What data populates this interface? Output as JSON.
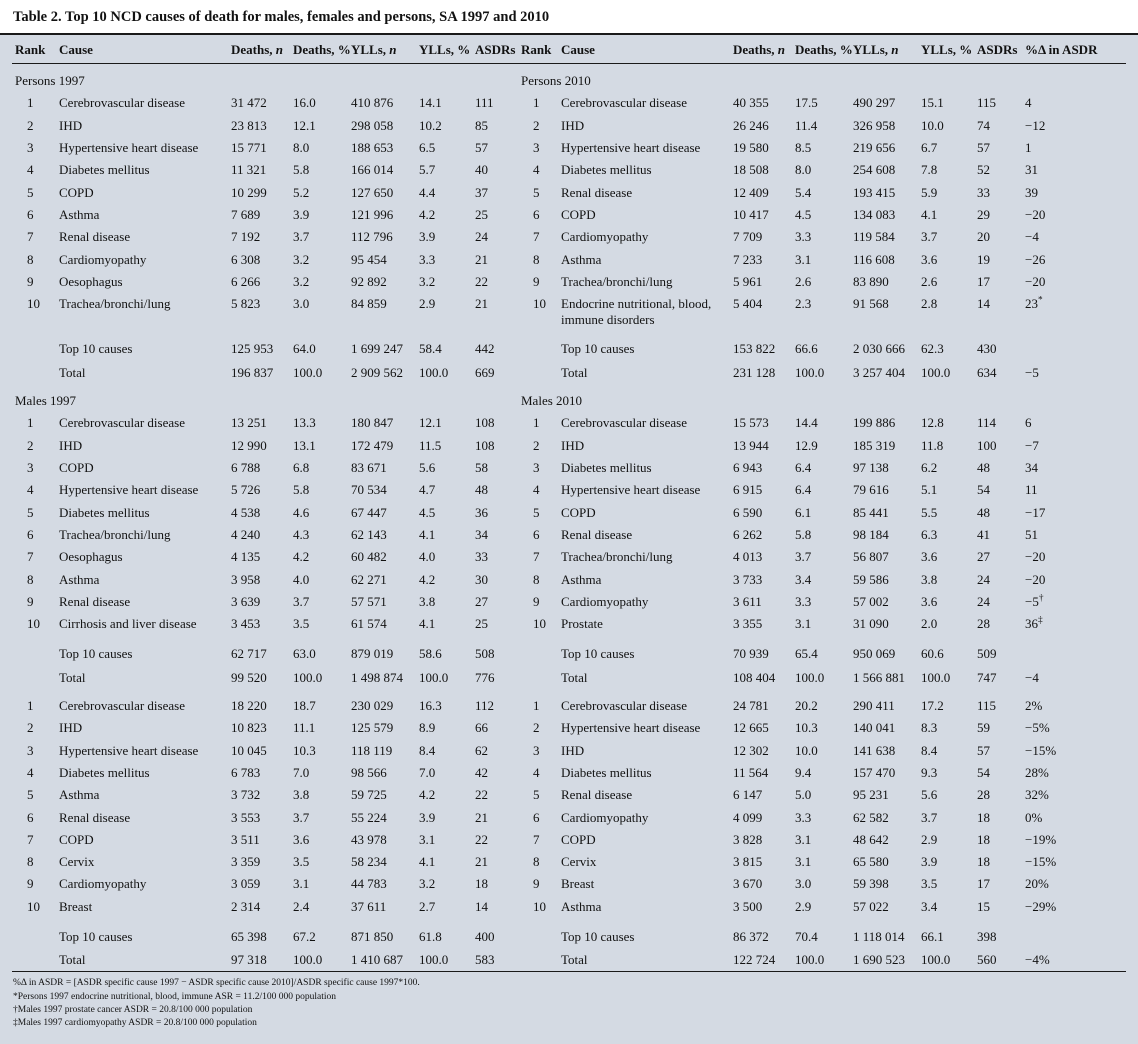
{
  "title": "Table 2. Top 10 NCD causes of death for males, females and persons, SA 1997 and 2010",
  "colors": {
    "table_background": "#d4dae3",
    "rule": "#1a1a1a"
  },
  "header": {
    "left": [
      "Rank",
      "Cause",
      "Deaths, n",
      "Deaths, %",
      "YLLs, n",
      "YLLs, %",
      "ASDRs"
    ],
    "right": [
      "Rank",
      "Cause",
      "Deaths, n",
      "Deaths, %",
      "YLLs, n",
      "YLLs, %",
      "ASDRs",
      "%Δ in ASDR"
    ]
  },
  "sections": [
    {
      "left_title": "Persons 1997",
      "right_title": "Persons 2010",
      "rows": [
        {
          "left": [
            "1",
            "Cerebrovascular disease",
            "31 472",
            "16.0",
            "410 876",
            "14.1",
            "111"
          ],
          "right": [
            "1",
            "Cerebrovascular disease",
            "40 355",
            "17.5",
            "490 297",
            "15.1",
            "115",
            "4"
          ]
        },
        {
          "left": [
            "2",
            "IHD",
            "23 813",
            "12.1",
            "298 058",
            "10.2",
            "85"
          ],
          "right": [
            "2",
            "IHD",
            "26 246",
            "11.4",
            "326 958",
            "10.0",
            "74",
            "−12"
          ]
        },
        {
          "left": [
            "3",
            "Hypertensive heart disease",
            "15 771",
            "8.0",
            "188 653",
            "6.5",
            "57"
          ],
          "right": [
            "3",
            "Hypertensive heart disease",
            "19 580",
            "8.5",
            "219 656",
            "6.7",
            "57",
            "1"
          ]
        },
        {
          "left": [
            "4",
            "Diabetes mellitus",
            "11 321",
            "5.8",
            "166 014",
            "5.7",
            "40"
          ],
          "right": [
            "4",
            "Diabetes mellitus",
            "18 508",
            "8.0",
            "254 608",
            "7.8",
            "52",
            "31"
          ]
        },
        {
          "left": [
            "5",
            "COPD",
            "10 299",
            "5.2",
            "127 650",
            "4.4",
            "37"
          ],
          "right": [
            "5",
            "Renal disease",
            "12 409",
            "5.4",
            "193 415",
            "5.9",
            "33",
            "39"
          ]
        },
        {
          "left": [
            "6",
            "Asthma",
            "7 689",
            "3.9",
            "121 996",
            "4.2",
            "25"
          ],
          "right": [
            "6",
            "COPD",
            "10 417",
            "4.5",
            "134 083",
            "4.1",
            "29",
            "−20"
          ]
        },
        {
          "left": [
            "7",
            "Renal disease",
            "7 192",
            "3.7",
            "112 796",
            "3.9",
            "24"
          ],
          "right": [
            "7",
            "Cardiomyopathy",
            "7 709",
            "3.3",
            "119 584",
            "3.7",
            "20",
            "−4"
          ]
        },
        {
          "left": [
            "8",
            "Cardiomyopathy",
            "6 308",
            "3.2",
            "95 454",
            "3.3",
            "21"
          ],
          "right": [
            "8",
            "Asthma",
            "7 233",
            "3.1",
            "116 608",
            "3.6",
            "19",
            "−26"
          ]
        },
        {
          "left": [
            "9",
            "Oesophagus",
            "6 266",
            "3.2",
            "92 892",
            "3.2",
            "22"
          ],
          "right": [
            "9",
            "Trachea/bronchi/lung",
            "5 961",
            "2.6",
            "83 890",
            "2.6",
            "17",
            "−20"
          ]
        },
        {
          "left": [
            "10",
            "Trachea/bronchi/lung",
            "5 823",
            "3.0",
            "84 859",
            "2.9",
            "21"
          ],
          "right": [
            "10",
            "Endocrine nutritional, blood, immune disorders",
            "5 404",
            "2.3",
            "91 568",
            "2.8",
            "14",
            "23*"
          ]
        }
      ],
      "summary": [
        {
          "left": [
            "Top 10 causes",
            "125 953",
            "64.0",
            "1 699 247",
            "58.4",
            "442"
          ],
          "right": [
            "Top 10 causes",
            "153 822",
            "66.6",
            "2 030 666",
            "62.3",
            "430",
            ""
          ]
        },
        {
          "left": [
            "Total",
            "196 837",
            "100.0",
            "2 909 562",
            "100.0",
            "669"
          ],
          "right": [
            "Total",
            "231 128",
            "100.0",
            "3 257 404",
            "100.0",
            "634",
            "−5"
          ]
        }
      ]
    },
    {
      "left_title": "Males 1997",
      "right_title": "Males 2010",
      "rows": [
        {
          "left": [
            "1",
            "Cerebrovascular disease",
            "13 251",
            "13.3",
            "180 847",
            "12.1",
            "108"
          ],
          "right": [
            "1",
            "Cerebrovascular disease",
            "15 573",
            "14.4",
            "199 886",
            "12.8",
            "114",
            "6"
          ]
        },
        {
          "left": [
            "2",
            "IHD",
            "12 990",
            "13.1",
            "172 479",
            "11.5",
            "108"
          ],
          "right": [
            "2",
            "IHD",
            "13 944",
            "12.9",
            "185 319",
            "11.8",
            "100",
            "−7"
          ]
        },
        {
          "left": [
            "3",
            "COPD",
            "6 788",
            "6.8",
            "83 671",
            "5.6",
            "58"
          ],
          "right": [
            "3",
            "Diabetes mellitus",
            "6 943",
            "6.4",
            "97 138",
            "6.2",
            "48",
            "34"
          ]
        },
        {
          "left": [
            "4",
            "Hypertensive heart disease",
            "5 726",
            "5.8",
            "70 534",
            "4.7",
            "48"
          ],
          "right": [
            "4",
            "Hypertensive heart disease",
            "6 915",
            "6.4",
            "79 616",
            "5.1",
            "54",
            "11"
          ]
        },
        {
          "left": [
            "5",
            "Diabetes mellitus",
            "4 538",
            "4.6",
            "67 447",
            "4.5",
            "36"
          ],
          "right": [
            "5",
            "COPD",
            "6 590",
            "6.1",
            "85 441",
            "5.5",
            "48",
            "−17"
          ]
        },
        {
          "left": [
            "6",
            "Trachea/bronchi/lung",
            "4 240",
            "4.3",
            "62 143",
            "4.1",
            "34"
          ],
          "right": [
            "6",
            "Renal disease",
            "6 262",
            "5.8",
            "98 184",
            "6.3",
            "41",
            "51"
          ]
        },
        {
          "left": [
            "7",
            "Oesophagus",
            "4 135",
            "4.2",
            "60 482",
            "4.0",
            "33"
          ],
          "right": [
            "7",
            "Trachea/bronchi/lung",
            "4 013",
            "3.7",
            "56 807",
            "3.6",
            "27",
            "−20"
          ]
        },
        {
          "left": [
            "8",
            "Asthma",
            "3 958",
            "4.0",
            "62 271",
            "4.2",
            "30"
          ],
          "right": [
            "8",
            "Asthma",
            "3 733",
            "3.4",
            "59 586",
            "3.8",
            "24",
            "−20"
          ]
        },
        {
          "left": [
            "9",
            "Renal disease",
            "3 639",
            "3.7",
            "57 571",
            "3.8",
            "27"
          ],
          "right": [
            "9",
            "Cardiomyopathy",
            "3 611",
            "3.3",
            "57 002",
            "3.6",
            "24",
            "−5†"
          ]
        },
        {
          "left": [
            "10",
            "Cirrhosis and liver disease",
            "3 453",
            "3.5",
            "61 574",
            "4.1",
            "25"
          ],
          "right": [
            "10",
            "Prostate",
            "3 355",
            "3.1",
            "31 090",
            "2.0",
            "28",
            "36‡"
          ]
        }
      ],
      "summary": [
        {
          "left": [
            "Top 10 causes",
            "62 717",
            "63.0",
            "879 019",
            "58.6",
            "508"
          ],
          "right": [
            "Top 10 causes",
            "70 939",
            "65.4",
            "950 069",
            "60.6",
            "509",
            ""
          ]
        },
        {
          "left": [
            "Total",
            "99 520",
            "100.0",
            "1 498 874",
            "100.0",
            "776"
          ],
          "right": [
            "Total",
            "108 404",
            "100.0",
            "1 566 881",
            "100.0",
            "747",
            "−4"
          ]
        }
      ]
    },
    {
      "left_title": null,
      "right_title": null,
      "rows": [
        {
          "left": [
            "1",
            "Cerebrovascular disease",
            "18 220",
            "18.7",
            "230 029",
            "16.3",
            "112"
          ],
          "right": [
            "1",
            "Cerebrovascular disease",
            "24 781",
            "20.2",
            "290 411",
            "17.2",
            "115",
            "2%"
          ]
        },
        {
          "left": [
            "2",
            "IHD",
            "10 823",
            "11.1",
            "125 579",
            "8.9",
            "66"
          ],
          "right": [
            "2",
            "Hypertensive heart disease",
            "12 665",
            "10.3",
            "140 041",
            "8.3",
            "59",
            "−5%"
          ]
        },
        {
          "left": [
            "3",
            "Hypertensive heart disease",
            "10 045",
            "10.3",
            "118 119",
            "8.4",
            "62"
          ],
          "right": [
            "3",
            "IHD",
            "12 302",
            "10.0",
            "141 638",
            "8.4",
            "57",
            "−15%"
          ]
        },
        {
          "left": [
            "4",
            "Diabetes mellitus",
            "6 783",
            "7.0",
            "98 566",
            "7.0",
            "42"
          ],
          "right": [
            "4",
            "Diabetes mellitus",
            "11 564",
            "9.4",
            "157 470",
            "9.3",
            "54",
            "28%"
          ]
        },
        {
          "left": [
            "5",
            "Asthma",
            "3 732",
            "3.8",
            "59 725",
            "4.2",
            "22"
          ],
          "right": [
            "5",
            "Renal disease",
            "6 147",
            "5.0",
            "95 231",
            "5.6",
            "28",
            "32%"
          ]
        },
        {
          "left": [
            "6",
            "Renal disease",
            "3 553",
            "3.7",
            "55 224",
            "3.9",
            "21"
          ],
          "right": [
            "6",
            "Cardiomyopathy",
            "4 099",
            "3.3",
            "62 582",
            "3.7",
            "18",
            "0%"
          ]
        },
        {
          "left": [
            "7",
            "COPD",
            "3 511",
            "3.6",
            "43 978",
            "3.1",
            "22"
          ],
          "right": [
            "7",
            "COPD",
            "3 828",
            "3.1",
            "48 642",
            "2.9",
            "18",
            "−19%"
          ]
        },
        {
          "left": [
            "8",
            "Cervix",
            "3 359",
            "3.5",
            "58 234",
            "4.1",
            "21"
          ],
          "right": [
            "8",
            "Cervix",
            "3 815",
            "3.1",
            "65 580",
            "3.9",
            "18",
            "−15%"
          ]
        },
        {
          "left": [
            "9",
            "Cardiomyopathy",
            "3 059",
            "3.1",
            "44 783",
            "3.2",
            "18"
          ],
          "right": [
            "9",
            "Breast",
            "3 670",
            "3.0",
            "59 398",
            "3.5",
            "17",
            "20%"
          ]
        },
        {
          "left": [
            "10",
            "Breast",
            "2 314",
            "2.4",
            "37 611",
            "2.7",
            "14"
          ],
          "right": [
            "10",
            "Asthma",
            "3 500",
            "2.9",
            "57 022",
            "3.4",
            "15",
            "−29%"
          ]
        }
      ],
      "summary": [
        {
          "left": [
            "Top 10 causes",
            "65 398",
            "67.2",
            "871 850",
            "61.8",
            "400"
          ],
          "right": [
            "Top 10 causes",
            "86 372",
            "70.4",
            "1 118 014",
            "66.1",
            "398",
            ""
          ]
        },
        {
          "left": [
            "Total",
            "97 318",
            "100.0",
            "1 410 687",
            "100.0",
            "583"
          ],
          "right": [
            "Total",
            "122 724",
            "100.0",
            "1 690 523",
            "100.0",
            "560",
            "−4%"
          ]
        }
      ]
    }
  ],
  "footnotes": [
    "%Δ in ASDR = [ASDR specific cause 1997 − ASDR specific cause 2010]/ASDR specific cause 1997*100.",
    "*Persons 1997 endocrine nutritional, blood, immune ASR = 11.2/100 000 population",
    "†Males 1997 prostate cancer ASDR = 20.8/100 000 population",
    "‡Males 1997 cardiomyopathy ASDR = 20.8/100 000 population"
  ]
}
